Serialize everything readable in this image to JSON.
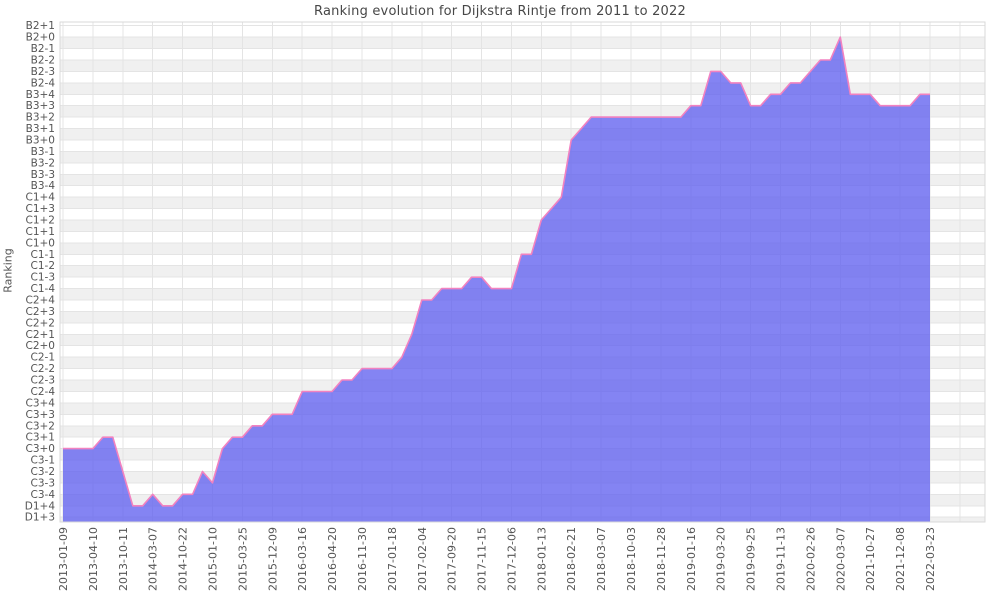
{
  "title": "Ranking evolution for Dijkstra Rintje from 2011 to 2022",
  "ylabel": "Ranking",
  "colors": {
    "area_fill": "#6262f0",
    "area_fill_opacity": 0.78,
    "line": "#f282c0",
    "band_gray": "#f0f0f0",
    "band_white": "#ffffff",
    "grid": "#e4e4e4",
    "border": "#d9d9d9",
    "tick_text": "#545454",
    "title_text": "#474747"
  },
  "chart_data": {
    "type": "area",
    "title": "Ranking evolution for Dijkstra Rintje from 2011 to 2022",
    "xlabel": "",
    "ylabel": "Ranking",
    "grid": true,
    "legend": false,
    "y_categories_top_to_bottom": [
      "B2+1",
      "B2+0",
      "B2-1",
      "B2-2",
      "B2-3",
      "B2-4",
      "B3+4",
      "B3+3",
      "B3+2",
      "B3+1",
      "B3+0",
      "B3-1",
      "B3-2",
      "B3-3",
      "B3-4",
      "C1+4",
      "C1+3",
      "C1+2",
      "C1+1",
      "C1+0",
      "C1-1",
      "C1-2",
      "C1-3",
      "C1-4",
      "C2+4",
      "C2+3",
      "C2+2",
      "C2+1",
      "C2+0",
      "C2-1",
      "C2-2",
      "C2-3",
      "C2-4",
      "C3+4",
      "C3+3",
      "C3+2",
      "C3+1",
      "C3+0",
      "C3-1",
      "C3-2",
      "C3-3",
      "C3-4",
      "D1+4",
      "D1+3"
    ],
    "x_tick_labels": [
      "2013-01-09",
      "2013-04-10",
      "2013-10-11",
      "2014-03-07",
      "2014-10-22",
      "2015-01-10",
      "2015-03-25",
      "2015-12-09",
      "2016-03-16",
      "2016-04-20",
      "2016-11-30",
      "2017-01-18",
      "2017-02-04",
      "2017-09-20",
      "2017-11-15",
      "2017-12-06",
      "2018-01-13",
      "2018-02-21",
      "2018-03-07",
      "2018-10-03",
      "2018-11-28",
      "2019-01-16",
      "2019-03-20",
      "2019-09-25",
      "2019-11-13",
      "2020-02-26",
      "2020-03-07",
      "2021-10-27",
      "2021-12-08",
      "2022-03-23"
    ],
    "label_every_n_points": 3,
    "points_rank_values": [
      "C3+0",
      "C3+0",
      "C3+0",
      "C3+0",
      "C3+1",
      "C3+1",
      "C3-2",
      "D1+4",
      "D1+4",
      "C3-4",
      "D1+4",
      "D1+4",
      "C3-4",
      "C3-4",
      "C3-2",
      "C3-3",
      "C3+0",
      "C3+1",
      "C3+1",
      "C3+2",
      "C3+2",
      "C3+3",
      "C3+3",
      "C3+3",
      "C2-4",
      "C2-4",
      "C2-4",
      "C2-4",
      "C2-3",
      "C2-3",
      "C2-2",
      "C2-2",
      "C2-2",
      "C2-2",
      "C2-1",
      "C2+1",
      "C2+4",
      "C2+4",
      "C1-4",
      "C1-4",
      "C1-4",
      "C1-3",
      "C1-3",
      "C1-4",
      "C1-4",
      "C1-4",
      "C1-1",
      "C1-1",
      "C1+2",
      "C1+3",
      "C1+4",
      "B3+0",
      "B3+1",
      "B3+2",
      "B3+2",
      "B3+2",
      "B3+2",
      "B3+2",
      "B3+2",
      "B3+2",
      "B3+2",
      "B3+2",
      "B3+2",
      "B3+3",
      "B3+3",
      "B2-3",
      "B2-3",
      "B2-4",
      "B2-4",
      "B3+3",
      "B3+3",
      "B3+4",
      "B3+4",
      "B2-4",
      "B2-4",
      "B2-3",
      "B2-2",
      "B2-2",
      "B2+0",
      "B3+4",
      "B3+4",
      "B3+4",
      "B3+3",
      "B3+3",
      "B3+3",
      "B3+3",
      "B3+4",
      "B3+4"
    ],
    "labeled_dates_values": {
      "2013-01-09": "C3+0",
      "2013-04-10": "C3+0",
      "2013-10-11": "C3-2",
      "2014-03-07": "C3-4",
      "2014-10-22": "C3-4",
      "2015-01-10": "C3-3",
      "2015-03-25": "C3+1",
      "2015-12-09": "C3+3",
      "2016-03-16": "C2-4",
      "2016-04-20": "C2-4",
      "2016-11-30": "C2-2",
      "2017-01-18": "C2-2",
      "2017-02-04": "C2+4",
      "2017-09-20": "C1-4",
      "2017-11-15": "C1-3",
      "2017-12-06": "C1-4",
      "2018-01-13": "C1+2",
      "2018-02-21": "B3+0",
      "2018-03-07": "B3+2",
      "2018-10-03": "B3+2",
      "2018-11-28": "B3+2",
      "2019-01-16": "B3+3",
      "2019-03-20": "B2-3",
      "2019-09-25": "B3+3",
      "2019-11-13": "B3+4",
      "2020-02-26": "B2-3",
      "2020-03-07": "B2+0",
      "2021-10-27": "B3+4",
      "2021-12-08": "B3+3",
      "2022-03-23": "B3+4"
    }
  }
}
